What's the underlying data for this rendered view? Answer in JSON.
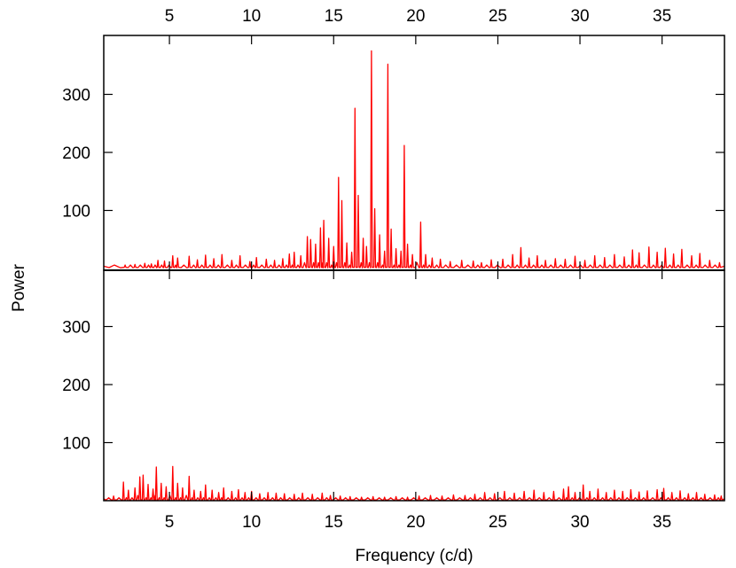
{
  "chart_data": {
    "type": "line",
    "xlabel": "Frequency (c/d)",
    "ylabel": "Power",
    "xlim": [
      1,
      38.8
    ],
    "ylim": [
      0,
      400
    ],
    "x_ticks": [
      5,
      10,
      15,
      20,
      25,
      30,
      35
    ],
    "y_ticks": [
      100,
      200,
      300
    ],
    "line_color": "#ff0000",
    "panels": [
      {
        "name": "top",
        "baseline": 4,
        "peaks": [
          [
            2.3,
            6
          ],
          [
            2.9,
            7
          ],
          [
            3.5,
            9
          ],
          [
            3.9,
            8
          ],
          [
            4.3,
            14
          ],
          [
            4.7,
            13
          ],
          [
            5.2,
            22
          ],
          [
            5.5,
            18
          ],
          [
            6.2,
            21
          ],
          [
            6.7,
            15
          ],
          [
            7.2,
            23
          ],
          [
            7.7,
            17
          ],
          [
            8.2,
            24
          ],
          [
            8.8,
            14
          ],
          [
            9.3,
            22
          ],
          [
            9.9,
            12
          ],
          [
            10.3,
            19
          ],
          [
            10.9,
            16
          ],
          [
            11.4,
            14
          ],
          [
            11.9,
            17
          ],
          [
            12.3,
            25
          ],
          [
            12.6,
            28
          ],
          [
            13.0,
            22
          ],
          [
            13.4,
            55
          ],
          [
            13.6,
            50
          ],
          [
            13.9,
            42
          ],
          [
            14.2,
            70
          ],
          [
            14.4,
            83
          ],
          [
            14.7,
            52
          ],
          [
            15.0,
            38
          ],
          [
            15.3,
            157
          ],
          [
            15.5,
            117
          ],
          [
            15.8,
            44
          ],
          [
            16.1,
            28
          ],
          [
            16.3,
            276
          ],
          [
            16.5,
            126
          ],
          [
            16.8,
            52
          ],
          [
            17.0,
            38
          ],
          [
            17.3,
            375
          ],
          [
            17.5,
            103
          ],
          [
            17.8,
            58
          ],
          [
            18.1,
            30
          ],
          [
            18.3,
            352
          ],
          [
            18.5,
            68
          ],
          [
            18.8,
            34
          ],
          [
            19.1,
            30
          ],
          [
            19.3,
            212
          ],
          [
            19.5,
            42
          ],
          [
            19.8,
            24
          ],
          [
            20.3,
            80
          ],
          [
            20.6,
            24
          ],
          [
            21.0,
            18
          ],
          [
            21.5,
            16
          ],
          [
            22.1,
            12
          ],
          [
            22.8,
            14
          ],
          [
            23.5,
            13
          ],
          [
            24.0,
            10
          ],
          [
            24.6,
            15
          ],
          [
            25.3,
            16
          ],
          [
            25.9,
            24
          ],
          [
            26.4,
            36
          ],
          [
            26.9,
            18
          ],
          [
            27.4,
            22
          ],
          [
            27.9,
            14
          ],
          [
            28.5,
            17
          ],
          [
            29.1,
            16
          ],
          [
            29.7,
            21
          ],
          [
            30.3,
            14
          ],
          [
            30.9,
            22
          ],
          [
            31.5,
            19
          ],
          [
            32.1,
            24
          ],
          [
            32.7,
            20
          ],
          [
            33.2,
            32
          ],
          [
            33.6,
            27
          ],
          [
            34.2,
            37
          ],
          [
            34.7,
            28
          ],
          [
            35.2,
            35
          ],
          [
            35.7,
            25
          ],
          [
            36.2,
            33
          ],
          [
            36.8,
            22
          ],
          [
            37.3,
            26
          ],
          [
            37.9,
            14
          ],
          [
            38.5,
            10
          ]
        ]
      },
      {
        "name": "bottom",
        "baseline": 3,
        "peaks": [
          [
            1.6,
            8
          ],
          [
            2.2,
            32
          ],
          [
            2.5,
            18
          ],
          [
            2.9,
            22
          ],
          [
            3.2,
            41
          ],
          [
            3.4,
            44
          ],
          [
            3.7,
            28
          ],
          [
            4.0,
            20
          ],
          [
            4.2,
            58
          ],
          [
            4.5,
            30
          ],
          [
            4.8,
            24
          ],
          [
            5.2,
            59
          ],
          [
            5.5,
            30
          ],
          [
            5.8,
            22
          ],
          [
            6.2,
            42
          ],
          [
            6.5,
            18
          ],
          [
            6.9,
            16
          ],
          [
            7.2,
            27
          ],
          [
            7.6,
            18
          ],
          [
            8.0,
            14
          ],
          [
            8.3,
            22
          ],
          [
            8.8,
            16
          ],
          [
            9.2,
            19
          ],
          [
            9.6,
            14
          ],
          [
            10.0,
            16
          ],
          [
            10.5,
            12
          ],
          [
            11.0,
            14
          ],
          [
            11.5,
            13
          ],
          [
            12.0,
            12
          ],
          [
            12.6,
            11
          ],
          [
            13.1,
            13
          ],
          [
            13.7,
            11
          ],
          [
            14.3,
            13
          ],
          [
            14.8,
            9
          ],
          [
            15.4,
            8
          ],
          [
            16.0,
            7
          ],
          [
            16.7,
            6
          ],
          [
            17.4,
            7
          ],
          [
            18.1,
            6
          ],
          [
            18.8,
            7
          ],
          [
            19.5,
            6
          ],
          [
            20.2,
            8
          ],
          [
            20.9,
            9
          ],
          [
            21.6,
            8
          ],
          [
            22.3,
            10
          ],
          [
            23.0,
            9
          ],
          [
            23.6,
            11
          ],
          [
            24.2,
            14
          ],
          [
            24.8,
            12
          ],
          [
            25.4,
            16
          ],
          [
            26.0,
            13
          ],
          [
            26.6,
            16
          ],
          [
            27.2,
            18
          ],
          [
            27.8,
            14
          ],
          [
            28.4,
            16
          ],
          [
            29.0,
            20
          ],
          [
            29.3,
            24
          ],
          [
            29.7,
            14
          ],
          [
            30.2,
            27
          ],
          [
            30.6,
            16
          ],
          [
            31.1,
            20
          ],
          [
            31.6,
            14
          ],
          [
            32.1,
            18
          ],
          [
            32.6,
            16
          ],
          [
            33.1,
            19
          ],
          [
            33.6,
            15
          ],
          [
            34.1,
            17
          ],
          [
            34.7,
            19
          ],
          [
            35.1,
            21
          ],
          [
            35.6,
            14
          ],
          [
            36.1,
            17
          ],
          [
            36.6,
            12
          ],
          [
            37.1,
            14
          ],
          [
            37.6,
            11
          ],
          [
            38.2,
            10
          ],
          [
            38.6,
            8
          ]
        ]
      }
    ]
  }
}
